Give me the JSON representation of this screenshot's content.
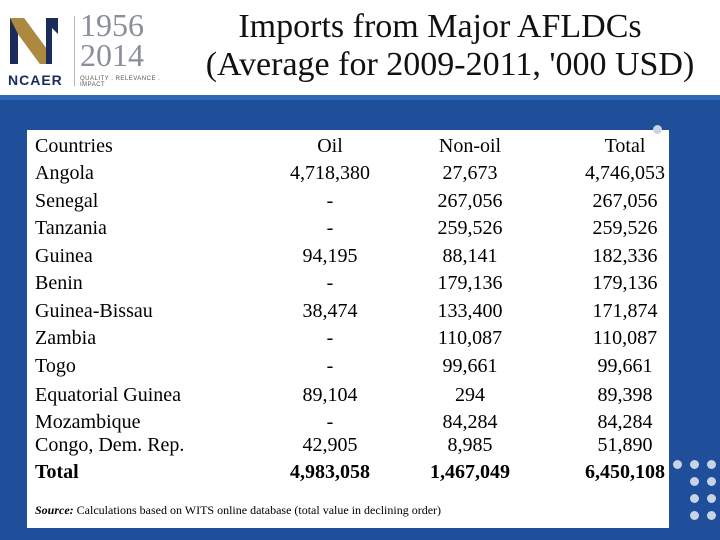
{
  "header": {
    "logo": {
      "years_top": "1956",
      "years_bottom": "2014",
      "brand": "NCAER",
      "tagline": "QUALITY . RELEVANCE . IMPACT"
    },
    "title_line1": "Imports from Major AFLDCs",
    "title_line2": "(Average for 2009-2011, '000 USD)"
  },
  "table": {
    "headers": [
      "Countries",
      "Oil",
      "Non-oil",
      "Total"
    ],
    "rows": [
      [
        "Angola",
        "4,718,380",
        "27,673",
        "4,746,053"
      ],
      [
        "Senegal",
        "-",
        "267,056",
        "267,056"
      ],
      [
        "Tanzania",
        "-",
        "259,526",
        "259,526"
      ],
      [
        "Guinea",
        "94,195",
        "88,141",
        "182,336"
      ],
      [
        "Benin",
        "-",
        "179,136",
        "179,136"
      ],
      [
        "Guinea-Bissau",
        "38,474",
        "133,400",
        "171,874"
      ],
      [
        "Zambia",
        "-",
        "110,087",
        "110,087"
      ],
      [
        "Togo",
        "-",
        "99,661",
        "99,661"
      ],
      [
        "Equatorial Guinea",
        "89,104",
        "294",
        "89,398"
      ],
      [
        "Mozambique",
        "-",
        "84,284",
        "84,284"
      ],
      [
        "Congo, Dem. Rep.",
        "42,905",
        "8,985",
        "51,890"
      ]
    ],
    "total": [
      "Total",
      "4,983,058",
      "1,467,049",
      "6,450,108"
    ]
  },
  "source": {
    "label": "Source:",
    "text": " Calculations based on WITS online database (total value in declining order)"
  },
  "colors": {
    "panel": "#1f4e9a",
    "logo_red": "#c0392b",
    "logo_navy": "#1a2b5c"
  }
}
